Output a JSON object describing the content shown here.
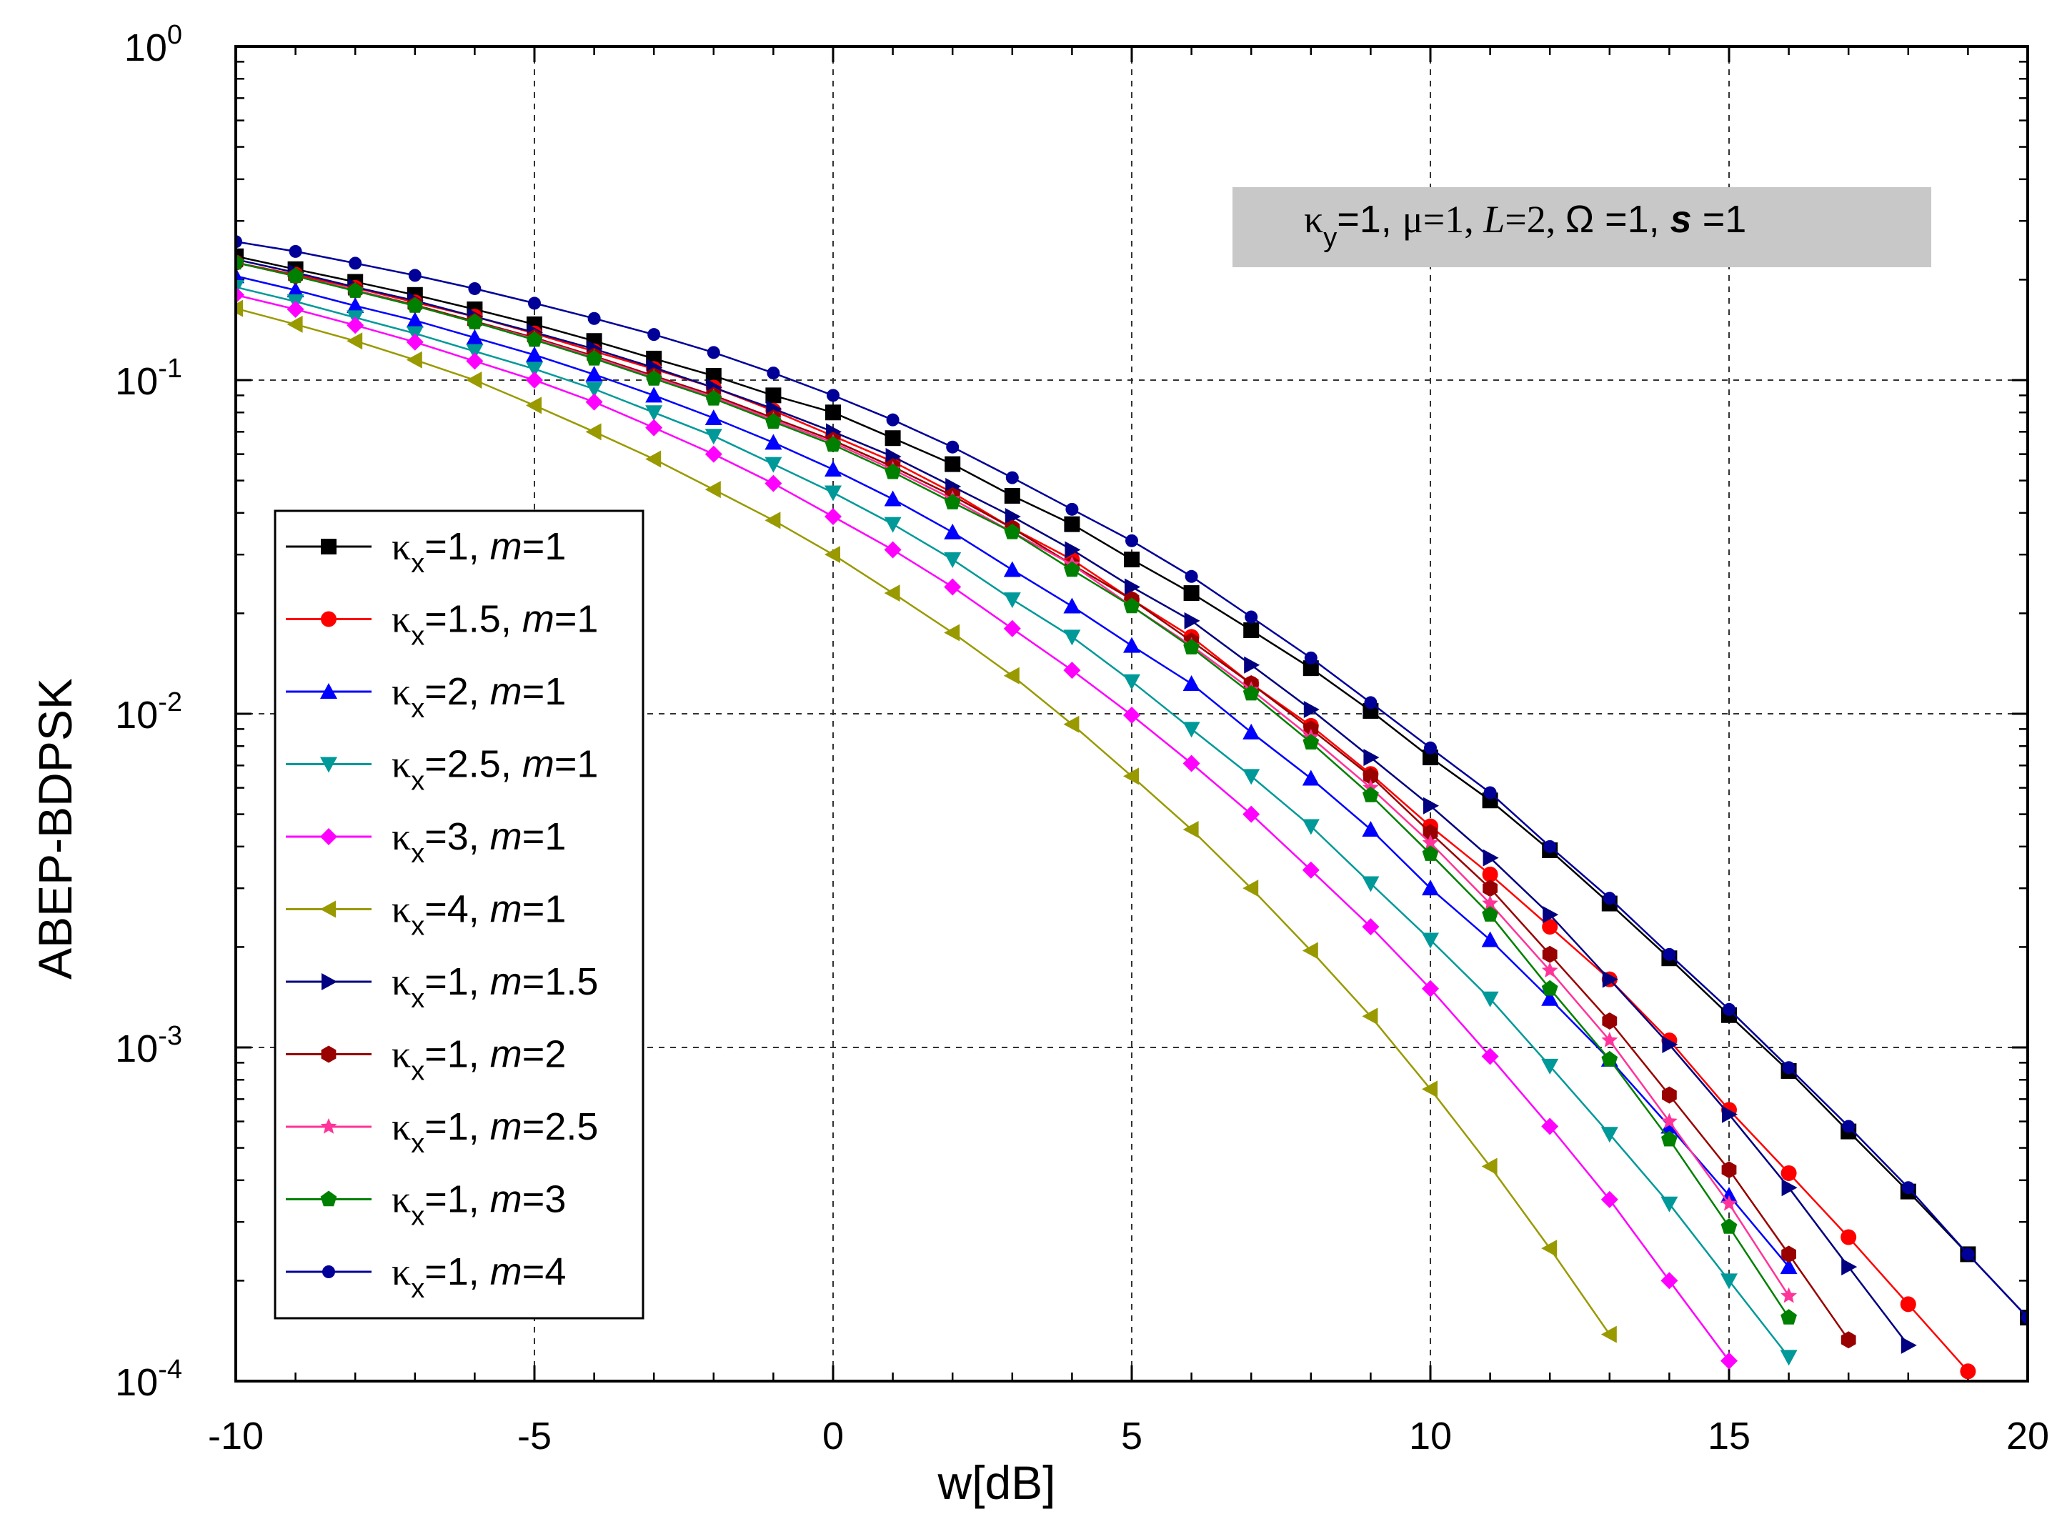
{
  "chart_data": {
    "type": "line",
    "title": "",
    "xlabel": "w[dB]",
    "ylabel": "ABEP-BDPSK",
    "xlim": [
      -10,
      20
    ],
    "ylim": [
      0.0001,
      1
    ],
    "yscale": "log",
    "grid": true,
    "x_ticks": [
      "-10",
      "-5",
      "0",
      "5",
      "10",
      "15",
      "20"
    ],
    "y_ticks": [
      {
        "base": "10",
        "exp": "0"
      },
      {
        "base": "10",
        "exp": "-1"
      },
      {
        "base": "10",
        "exp": "-2"
      },
      {
        "base": "10",
        "exp": "-3"
      },
      {
        "base": "10",
        "exp": "-4"
      }
    ],
    "legend_position": "left",
    "annotation": {
      "kappa": "κ",
      "kappa_sub": "y",
      "kappa_val": "=1, ",
      "mu": "μ=1, ",
      "L": "L",
      "L_val": "=2, ",
      "omega": "Ω =1, ",
      "s": "s",
      "s_val": " =1"
    },
    "series": [
      {
        "name": "κx=1, m=1",
        "kappa": "κ",
        "sub": "x",
        "kval": "=1, ",
        "m": "m",
        "mval": "=1",
        "color": "#000000",
        "marker": "square",
        "x": [
          -10,
          -9,
          -8,
          -7,
          -6,
          -5,
          -4,
          -3,
          -2,
          -1,
          0,
          1,
          2,
          3,
          4,
          5,
          6,
          7,
          8,
          9,
          10,
          11,
          12,
          13,
          14,
          15,
          16,
          17,
          18,
          19,
          20
        ],
        "y": [
          0.235,
          0.215,
          0.197,
          0.18,
          0.163,
          0.147,
          0.131,
          0.116,
          0.103,
          0.09,
          0.08,
          0.067,
          0.056,
          0.045,
          0.037,
          0.029,
          0.023,
          0.0178,
          0.0137,
          0.0102,
          0.0074,
          0.0055,
          0.0039,
          0.0027,
          0.00185,
          0.00125,
          0.00085,
          0.00056,
          0.00037,
          0.00024,
          0.000155
        ]
      },
      {
        "name": "κx=1.5, m=1",
        "kappa": "κ",
        "sub": "x",
        "kval": "=1.5, ",
        "m": "m",
        "mval": "=1",
        "color": "#ff0000",
        "marker": "circle",
        "x": [
          -10,
          -9,
          -8,
          -7,
          -6,
          -5,
          -4,
          -3,
          -2,
          -1,
          0,
          1,
          2,
          3,
          4,
          5,
          6,
          7,
          8,
          9,
          10,
          11,
          12,
          13,
          14,
          15,
          16,
          17,
          18,
          19
        ],
        "y": [
          0.225,
          0.207,
          0.189,
          0.171,
          0.155,
          0.138,
          0.122,
          0.108,
          0.095,
          0.081,
          0.068,
          0.057,
          0.046,
          0.036,
          0.029,
          0.022,
          0.017,
          0.0123,
          0.0092,
          0.0066,
          0.0046,
          0.0033,
          0.0023,
          0.0016,
          0.00105,
          0.00065,
          0.00042,
          0.00027,
          0.00017,
          0.000107
        ]
      },
      {
        "name": "κx=2, m=1",
        "kappa": "κ",
        "sub": "x",
        "kval": "=2, ",
        "m": "m",
        "mval": "=1",
        "color": "#0000ff",
        "marker": "triangle-up",
        "x": [
          -10,
          -9,
          -8,
          -7,
          -6,
          -5,
          -4,
          -3,
          -2,
          -1,
          0,
          1,
          2,
          3,
          4,
          5,
          6,
          7,
          8,
          9,
          10,
          11,
          12,
          13,
          14,
          15,
          16
        ],
        "y": [
          0.205,
          0.186,
          0.167,
          0.151,
          0.134,
          0.119,
          0.104,
          0.09,
          0.077,
          0.065,
          0.054,
          0.044,
          0.035,
          0.027,
          0.021,
          0.016,
          0.0123,
          0.0088,
          0.0064,
          0.0045,
          0.003,
          0.0021,
          0.0014,
          0.00092,
          0.00058,
          0.00036,
          0.00022
        ]
      },
      {
        "name": "κx=2.5, m=1",
        "kappa": "κ",
        "sub": "x",
        "kval": "=2.5, ",
        "m": "m",
        "mval": "=1",
        "color": "#009999",
        "marker": "triangle-down",
        "x": [
          -10,
          -9,
          -8,
          -7,
          -6,
          -5,
          -4,
          -3,
          -2,
          -1,
          0,
          1,
          2,
          3,
          4,
          5,
          6,
          7,
          8,
          9,
          10,
          11,
          12,
          13,
          14,
          15,
          16
        ],
        "y": [
          0.19,
          0.172,
          0.154,
          0.138,
          0.122,
          0.108,
          0.094,
          0.08,
          0.068,
          0.056,
          0.046,
          0.037,
          0.029,
          0.022,
          0.017,
          0.0125,
          0.009,
          0.0065,
          0.0046,
          0.0031,
          0.0021,
          0.0014,
          0.00088,
          0.00055,
          0.00034,
          0.0002,
          0.000118
        ]
      },
      {
        "name": "κx=3, m=1",
        "kappa": "κ",
        "sub": "x",
        "kval": "=3, ",
        "m": "m",
        "mval": "=1",
        "color": "#ff00ff",
        "marker": "diamond",
        "x": [
          -10,
          -9,
          -8,
          -7,
          -6,
          -5,
          -4,
          -3,
          -2,
          -1,
          0,
          1,
          2,
          3,
          4,
          5,
          6,
          7,
          8,
          9,
          10,
          11,
          12,
          13,
          14,
          15
        ],
        "y": [
          0.18,
          0.163,
          0.146,
          0.13,
          0.114,
          0.1,
          0.086,
          0.072,
          0.06,
          0.049,
          0.039,
          0.031,
          0.024,
          0.018,
          0.0135,
          0.0099,
          0.0071,
          0.005,
          0.0034,
          0.0023,
          0.0015,
          0.00094,
          0.00058,
          0.00035,
          0.0002,
          0.000115
        ]
      },
      {
        "name": "κx=4, m=1",
        "kappa": "κ",
        "sub": "x",
        "kval": "=4, ",
        "m": "m",
        "mval": "=1",
        "color": "#999900",
        "marker": "triangle-left",
        "x": [
          -10,
          -9,
          -8,
          -7,
          -6,
          -5,
          -4,
          -3,
          -2,
          -1,
          0,
          1,
          2,
          3,
          4,
          5,
          6,
          7,
          8,
          9,
          10,
          11,
          12,
          13
        ],
        "y": [
          0.164,
          0.147,
          0.131,
          0.115,
          0.1,
          0.084,
          0.07,
          0.058,
          0.047,
          0.038,
          0.03,
          0.023,
          0.0175,
          0.013,
          0.0093,
          0.0065,
          0.0045,
          0.003,
          0.00195,
          0.00124,
          0.00075,
          0.00044,
          0.00025,
          0.000138
        ]
      },
      {
        "name": "κx=1, m=1.5",
        "kappa": "κ",
        "sub": "x",
        "kval": "=1, ",
        "m": "m",
        "mval": "=1.5",
        "color": "#000080",
        "marker": "triangle-right",
        "x": [
          -10,
          -9,
          -8,
          -7,
          -6,
          -5,
          -4,
          -3,
          -2,
          -1,
          0,
          1,
          2,
          3,
          4,
          5,
          6,
          7,
          8,
          9,
          10,
          11,
          12,
          13,
          14,
          15,
          16,
          17,
          18
        ],
        "y": [
          0.23,
          0.21,
          0.19,
          0.173,
          0.155,
          0.139,
          0.124,
          0.109,
          0.095,
          0.082,
          0.07,
          0.059,
          0.048,
          0.039,
          0.031,
          0.024,
          0.019,
          0.014,
          0.0103,
          0.0074,
          0.0053,
          0.0037,
          0.0025,
          0.0016,
          0.00102,
          0.00063,
          0.00038,
          0.00022,
          0.000128
        ]
      },
      {
        "name": "κx=1, m=2",
        "kappa": "κ",
        "sub": "x",
        "kval": "=1, ",
        "m": "m",
        "mval": "=2",
        "color": "#990000",
        "marker": "hexagon",
        "x": [
          -10,
          -9,
          -8,
          -7,
          -6,
          -5,
          -4,
          -3,
          -2,
          -1,
          0,
          1,
          2,
          3,
          4,
          5,
          6,
          7,
          8,
          9,
          10,
          11,
          12,
          13,
          14,
          15,
          16,
          17
        ],
        "y": [
          0.225,
          0.205,
          0.186,
          0.168,
          0.15,
          0.134,
          0.118,
          0.103,
          0.09,
          0.077,
          0.066,
          0.055,
          0.045,
          0.036,
          0.028,
          0.022,
          0.0165,
          0.0123,
          0.009,
          0.0065,
          0.0044,
          0.003,
          0.0019,
          0.0012,
          0.00072,
          0.00043,
          0.00024,
          0.000133
        ]
      },
      {
        "name": "κx=1, m=2.5",
        "kappa": "κ",
        "sub": "x",
        "kval": "=1, ",
        "m": "m",
        "mval": "=2.5",
        "color": "#ff3399",
        "marker": "star",
        "x": [
          -10,
          -9,
          -8,
          -7,
          -6,
          -5,
          -4,
          -3,
          -2,
          -1,
          0,
          1,
          2,
          3,
          4,
          5,
          6,
          7,
          8,
          9,
          10,
          11,
          12,
          13,
          14,
          15,
          16
        ],
        "y": [
          0.225,
          0.205,
          0.186,
          0.167,
          0.149,
          0.133,
          0.117,
          0.102,
          0.089,
          0.076,
          0.065,
          0.054,
          0.044,
          0.035,
          0.028,
          0.021,
          0.016,
          0.0118,
          0.0085,
          0.006,
          0.0041,
          0.0027,
          0.0017,
          0.00105,
          0.0006,
          0.00034,
          0.00018
        ]
      },
      {
        "name": "κx=1, m=3",
        "kappa": "κ",
        "sub": "x",
        "kval": "=1, ",
        "m": "m",
        "mval": "=3",
        "color": "#008000",
        "marker": "pentagon",
        "x": [
          -10,
          -9,
          -8,
          -7,
          -6,
          -5,
          -4,
          -3,
          -2,
          -1,
          0,
          1,
          2,
          3,
          4,
          5,
          6,
          7,
          8,
          9,
          10,
          11,
          12,
          13,
          14,
          15,
          16
        ],
        "y": [
          0.225,
          0.205,
          0.185,
          0.167,
          0.149,
          0.132,
          0.116,
          0.101,
          0.088,
          0.075,
          0.064,
          0.053,
          0.043,
          0.035,
          0.027,
          0.021,
          0.0158,
          0.0115,
          0.0082,
          0.0057,
          0.0038,
          0.0025,
          0.0015,
          0.00092,
          0.00053,
          0.00029,
          0.000155
        ]
      },
      {
        "name": "κx=1, m=4",
        "kappa": "κ",
        "sub": "x",
        "kval": "=1, ",
        "m": "m",
        "mval": "=4",
        "color": "#000099",
        "marker": "small-circle",
        "x": [
          -10,
          -9,
          -8,
          -7,
          -6,
          -5,
          -4,
          -3,
          -2,
          -1,
          0,
          1,
          2,
          3,
          4,
          5,
          6,
          7,
          8,
          9,
          10,
          11,
          12,
          13,
          14,
          15,
          16,
          17,
          18,
          19,
          20
        ],
        "y": [
          0.26,
          0.243,
          0.224,
          0.206,
          0.188,
          0.17,
          0.153,
          0.137,
          0.121,
          0.105,
          0.09,
          0.076,
          0.063,
          0.051,
          0.041,
          0.033,
          0.0258,
          0.0195,
          0.0147,
          0.0108,
          0.0079,
          0.0058,
          0.004,
          0.0028,
          0.0019,
          0.0013,
          0.00087,
          0.00058,
          0.00038,
          0.00024,
          0.000155
        ]
      }
    ]
  }
}
